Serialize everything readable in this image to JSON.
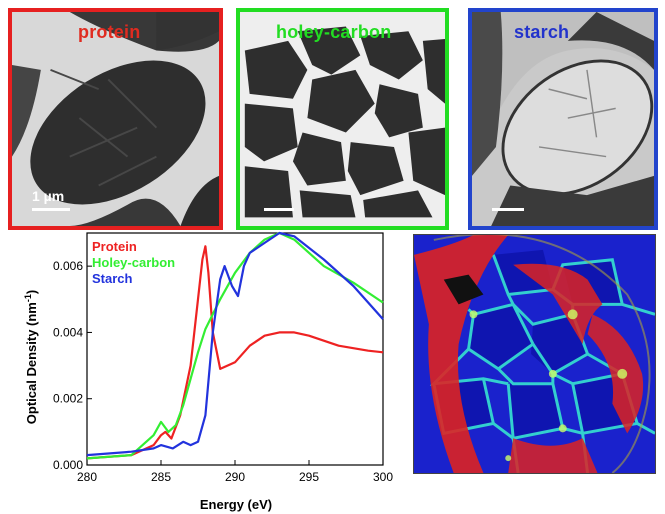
{
  "panels": [
    {
      "label": "protein",
      "label_color": "#e02b20",
      "border_color": "#e62020",
      "scale_label": "1 µm"
    },
    {
      "label": "holey-carbon",
      "label_color": "#22dd22",
      "border_color": "#22dd22"
    },
    {
      "label": "starch",
      "label_color": "#2233cc",
      "border_color": "#2244cc"
    }
  ],
  "chart_data": {
    "type": "line",
    "xlabel": "Energy (eV)",
    "ylabel_main": "Optical Density (nm",
    "ylabel_sup": "-1",
    "ylabel_end": ")",
    "xlim": [
      280,
      300
    ],
    "ylim": [
      0,
      0.007
    ],
    "xticks": [
      280,
      285,
      290,
      295,
      300
    ],
    "xtick_labels": [
      "280",
      "285",
      "290",
      "295",
      "300"
    ],
    "yticks": [
      0,
      0.002,
      0.004,
      0.006
    ],
    "ytick_labels": [
      "0.000",
      "0.002",
      "0.004",
      "0.006"
    ],
    "legend_position": "top-left",
    "series": [
      {
        "name": "Protein",
        "color": "#ee2222",
        "x": [
          280,
          283,
          284.5,
          285,
          285.3,
          285.7,
          286.3,
          287.0,
          287.5,
          287.8,
          288.0,
          288.2,
          288.5,
          289.0,
          290.0,
          291.0,
          292.0,
          293.0,
          294.0,
          295.0,
          297.0,
          299.0,
          300
        ],
        "y": [
          0.0002,
          0.0003,
          0.0006,
          0.0009,
          0.001,
          0.0008,
          0.0015,
          0.003,
          0.005,
          0.0062,
          0.0066,
          0.0058,
          0.004,
          0.0029,
          0.0031,
          0.0036,
          0.0039,
          0.004,
          0.004,
          0.0039,
          0.0036,
          0.00345,
          0.0034
        ]
      },
      {
        "name": "Holey-carbon",
        "color": "#33ee33",
        "x": [
          280,
          283,
          284.5,
          285,
          285.5,
          286.0,
          286.5,
          287.0,
          287.5,
          288.0,
          289.0,
          290.0,
          291.0,
          292.0,
          293.0,
          294.0,
          296.0,
          298.0,
          300
        ],
        "y": [
          0.0002,
          0.0003,
          0.0009,
          0.0013,
          0.001,
          0.0012,
          0.0018,
          0.0026,
          0.0034,
          0.0041,
          0.005,
          0.0058,
          0.0064,
          0.0068,
          0.007,
          0.0068,
          0.006,
          0.0055,
          0.0049
        ]
      },
      {
        "name": "Starch",
        "color": "#2233dd",
        "x": [
          280,
          283,
          284.5,
          285,
          285.8,
          286.5,
          287.0,
          287.5,
          288.0,
          288.5,
          289.0,
          289.3,
          289.8,
          290.2,
          290.6,
          291.0,
          292.0,
          293.0,
          294.0,
          296.0,
          298.0,
          300
        ],
        "y": [
          0.0003,
          0.0004,
          0.0005,
          0.0006,
          0.0005,
          0.0007,
          0.0006,
          0.0007,
          0.0015,
          0.004,
          0.0056,
          0.006,
          0.0054,
          0.0051,
          0.006,
          0.0064,
          0.0067,
          0.007,
          0.0069,
          0.0062,
          0.0054,
          0.0044
        ]
      }
    ]
  }
}
